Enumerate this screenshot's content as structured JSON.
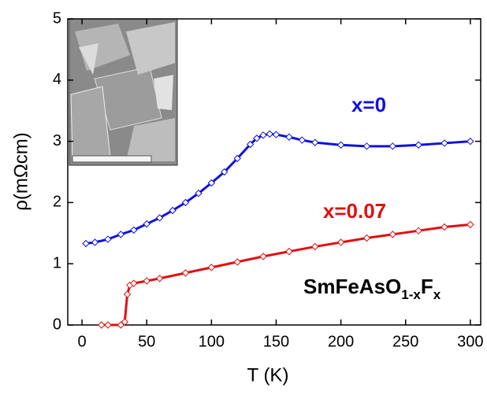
{
  "chart_data": {
    "type": "scatter",
    "x_label": "T (K)",
    "y_label": "ρ(mΩcm)",
    "xlim": [
      -11,
      308
    ],
    "ylim": [
      0,
      5
    ],
    "xticks": [
      0,
      50,
      100,
      150,
      200,
      250,
      300
    ],
    "yticks": [
      0,
      1,
      2,
      3,
      4,
      5
    ],
    "formula": [
      {
        "text": "SmFeAsO",
        "sub": false
      },
      {
        "text": "1-x",
        "sub": true
      },
      {
        "text": "F",
        "sub": false
      },
      {
        "text": "x",
        "sub": true
      }
    ],
    "series": [
      {
        "name": "x=0",
        "color": "#1010e0",
        "x": [
          3,
          10,
          20,
          30,
          40,
          50,
          60,
          70,
          80,
          90,
          100,
          110,
          120,
          130,
          135,
          140,
          145,
          150,
          160,
          170,
          180,
          200,
          220,
          240,
          260,
          280,
          300
        ],
        "values": [
          1.33,
          1.35,
          1.4,
          1.48,
          1.55,
          1.65,
          1.75,
          1.87,
          2.0,
          2.15,
          2.32,
          2.5,
          2.72,
          2.95,
          3.05,
          3.1,
          3.12,
          3.11,
          3.07,
          3.02,
          2.98,
          2.94,
          2.92,
          2.92,
          2.94,
          2.97,
          3.0
        ]
      },
      {
        "name": "x=0.07",
        "color": "#e01010",
        "x": [
          15,
          20,
          30,
          33,
          35,
          37,
          40,
          50,
          60,
          80,
          100,
          120,
          140,
          160,
          180,
          200,
          220,
          240,
          260,
          280,
          300
        ],
        "values": [
          0,
          0,
          0,
          0.05,
          0.5,
          0.65,
          0.68,
          0.72,
          0.76,
          0.85,
          0.94,
          1.03,
          1.12,
          1.2,
          1.28,
          1.35,
          1.42,
          1.48,
          1.54,
          1.6,
          1.64
        ]
      }
    ]
  }
}
